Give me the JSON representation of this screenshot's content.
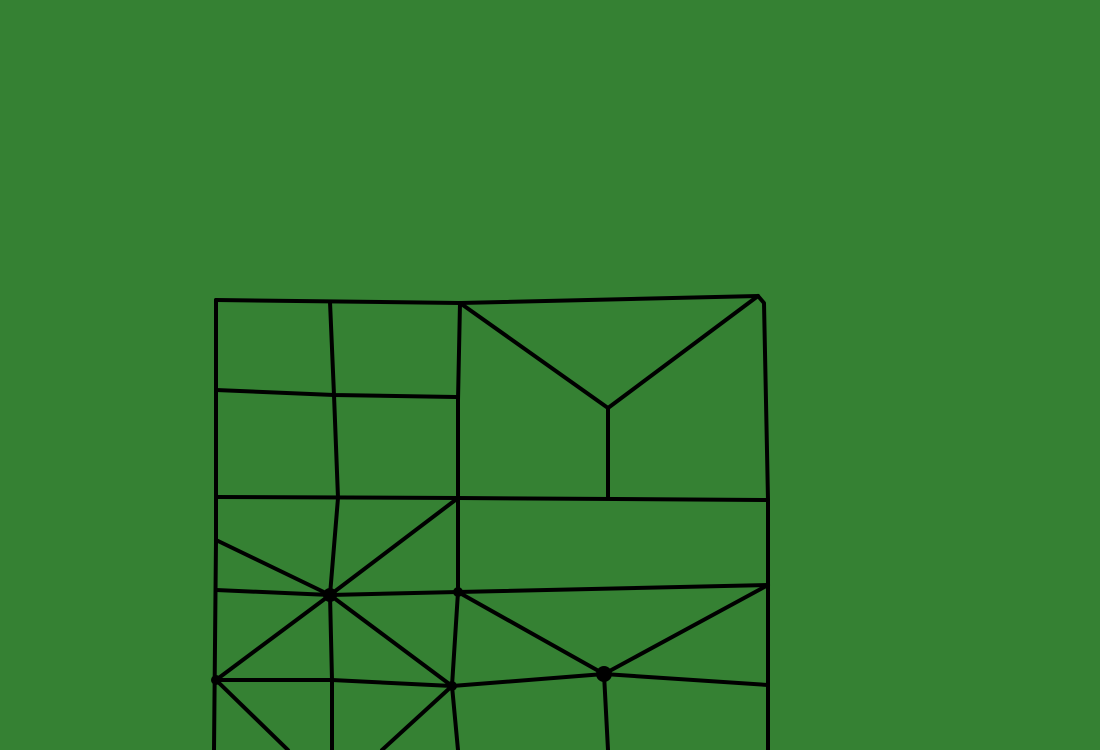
{
  "canvas": {
    "background": "#358133",
    "line_color": "#000000"
  },
  "diagram": {
    "kind": "line-drawing",
    "labels": []
  }
}
